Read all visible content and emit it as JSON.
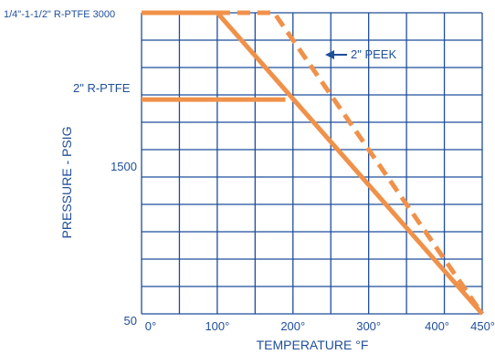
{
  "chart_data": {
    "type": "line",
    "xlabel": "TEMPERATURE °F",
    "ylabel": "PRESSURE - PSIG",
    "xlim": [
      0,
      450
    ],
    "ylim": [
      50,
      3000
    ],
    "x_ticks": [
      {
        "value": 0,
        "label": "0°"
      },
      {
        "value": 100,
        "label": "100°"
      },
      {
        "value": 200,
        "label": "200°"
      },
      {
        "value": 300,
        "label": "300°"
      },
      {
        "value": 400,
        "label": "400°"
      },
      {
        "value": 450,
        "label": "450°"
      }
    ],
    "y_ticks": [
      {
        "value": 1500,
        "label": "1500"
      },
      {
        "value": 50,
        "label": "50"
      }
    ],
    "grid": true,
    "series": [
      {
        "name": "1/4\"-1-1/2\" R-PTFE",
        "style": "solid",
        "points": [
          [
            0,
            3000
          ],
          [
            100,
            3000
          ],
          [
            450,
            50
          ]
        ]
      },
      {
        "name": "2\" R-PTFE",
        "style": "solid",
        "points": [
          [
            0,
            2150
          ],
          [
            190,
            2150
          ]
        ]
      },
      {
        "name": "2\" PEEK",
        "style": "dashed",
        "points": [
          [
            100,
            3000
          ],
          [
            175,
            3000
          ],
          [
            450,
            50
          ]
        ]
      }
    ],
    "annotations": {
      "top_label": "1/4\"-1-1/2\" R-PTFE 3000",
      "r_ptfe_label": "2\" R-PTFE",
      "peek_label": "2\" PEEK"
    },
    "colors": {
      "line": "#f0914a",
      "grid": "#1f4e9a",
      "text": "#1f4e9a"
    }
  }
}
